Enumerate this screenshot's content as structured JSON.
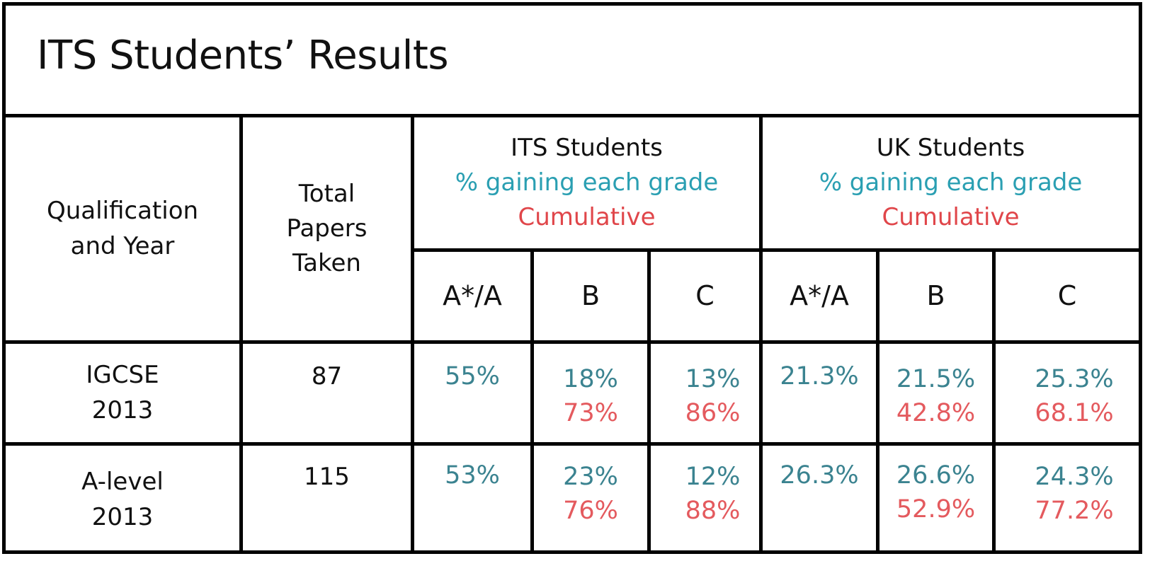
{
  "title": "ITS Students’ Results",
  "headers": {
    "qualification": [
      "Qualification",
      "and Year"
    ],
    "total_papers": [
      "Total",
      "Papers",
      "Taken"
    ],
    "its_group": {
      "name": "ITS Students",
      "sub1": "% gaining each grade",
      "sub2": "Cumulative"
    },
    "uk_group": {
      "name": "UK Students",
      "sub1": "% gaining each grade",
      "sub2": "Cumulative"
    },
    "grades": [
      "A*/A",
      "B",
      "C"
    ]
  },
  "rows": [
    {
      "qual": [
        "IGCSE",
        "2013"
      ],
      "total": "87",
      "its": {
        "a": "55%",
        "b": "18%",
        "b_cum": "73%",
        "c": "13%",
        "c_cum": "86%"
      },
      "uk": {
        "a": "21.3%",
        "b": "21.5%",
        "b_cum": "42.8%",
        "c": "25.3%",
        "c_cum": "68.1%"
      }
    },
    {
      "qual": [
        "A-level",
        "2013"
      ],
      "total": "115",
      "its": {
        "a": "53%",
        "b": "23%",
        "b_cum": "76%",
        "c": "12%",
        "c_cum": "88%"
      },
      "uk": {
        "a": "26.3%",
        "b": "26.6%",
        "b_cum": "52.9%",
        "c": "24.3%",
        "c_cum": "77.2%"
      }
    }
  ],
  "colors": {
    "percent": "#3b8390",
    "cumulative": "#e0464a",
    "subheader": "#2a9fb2"
  }
}
